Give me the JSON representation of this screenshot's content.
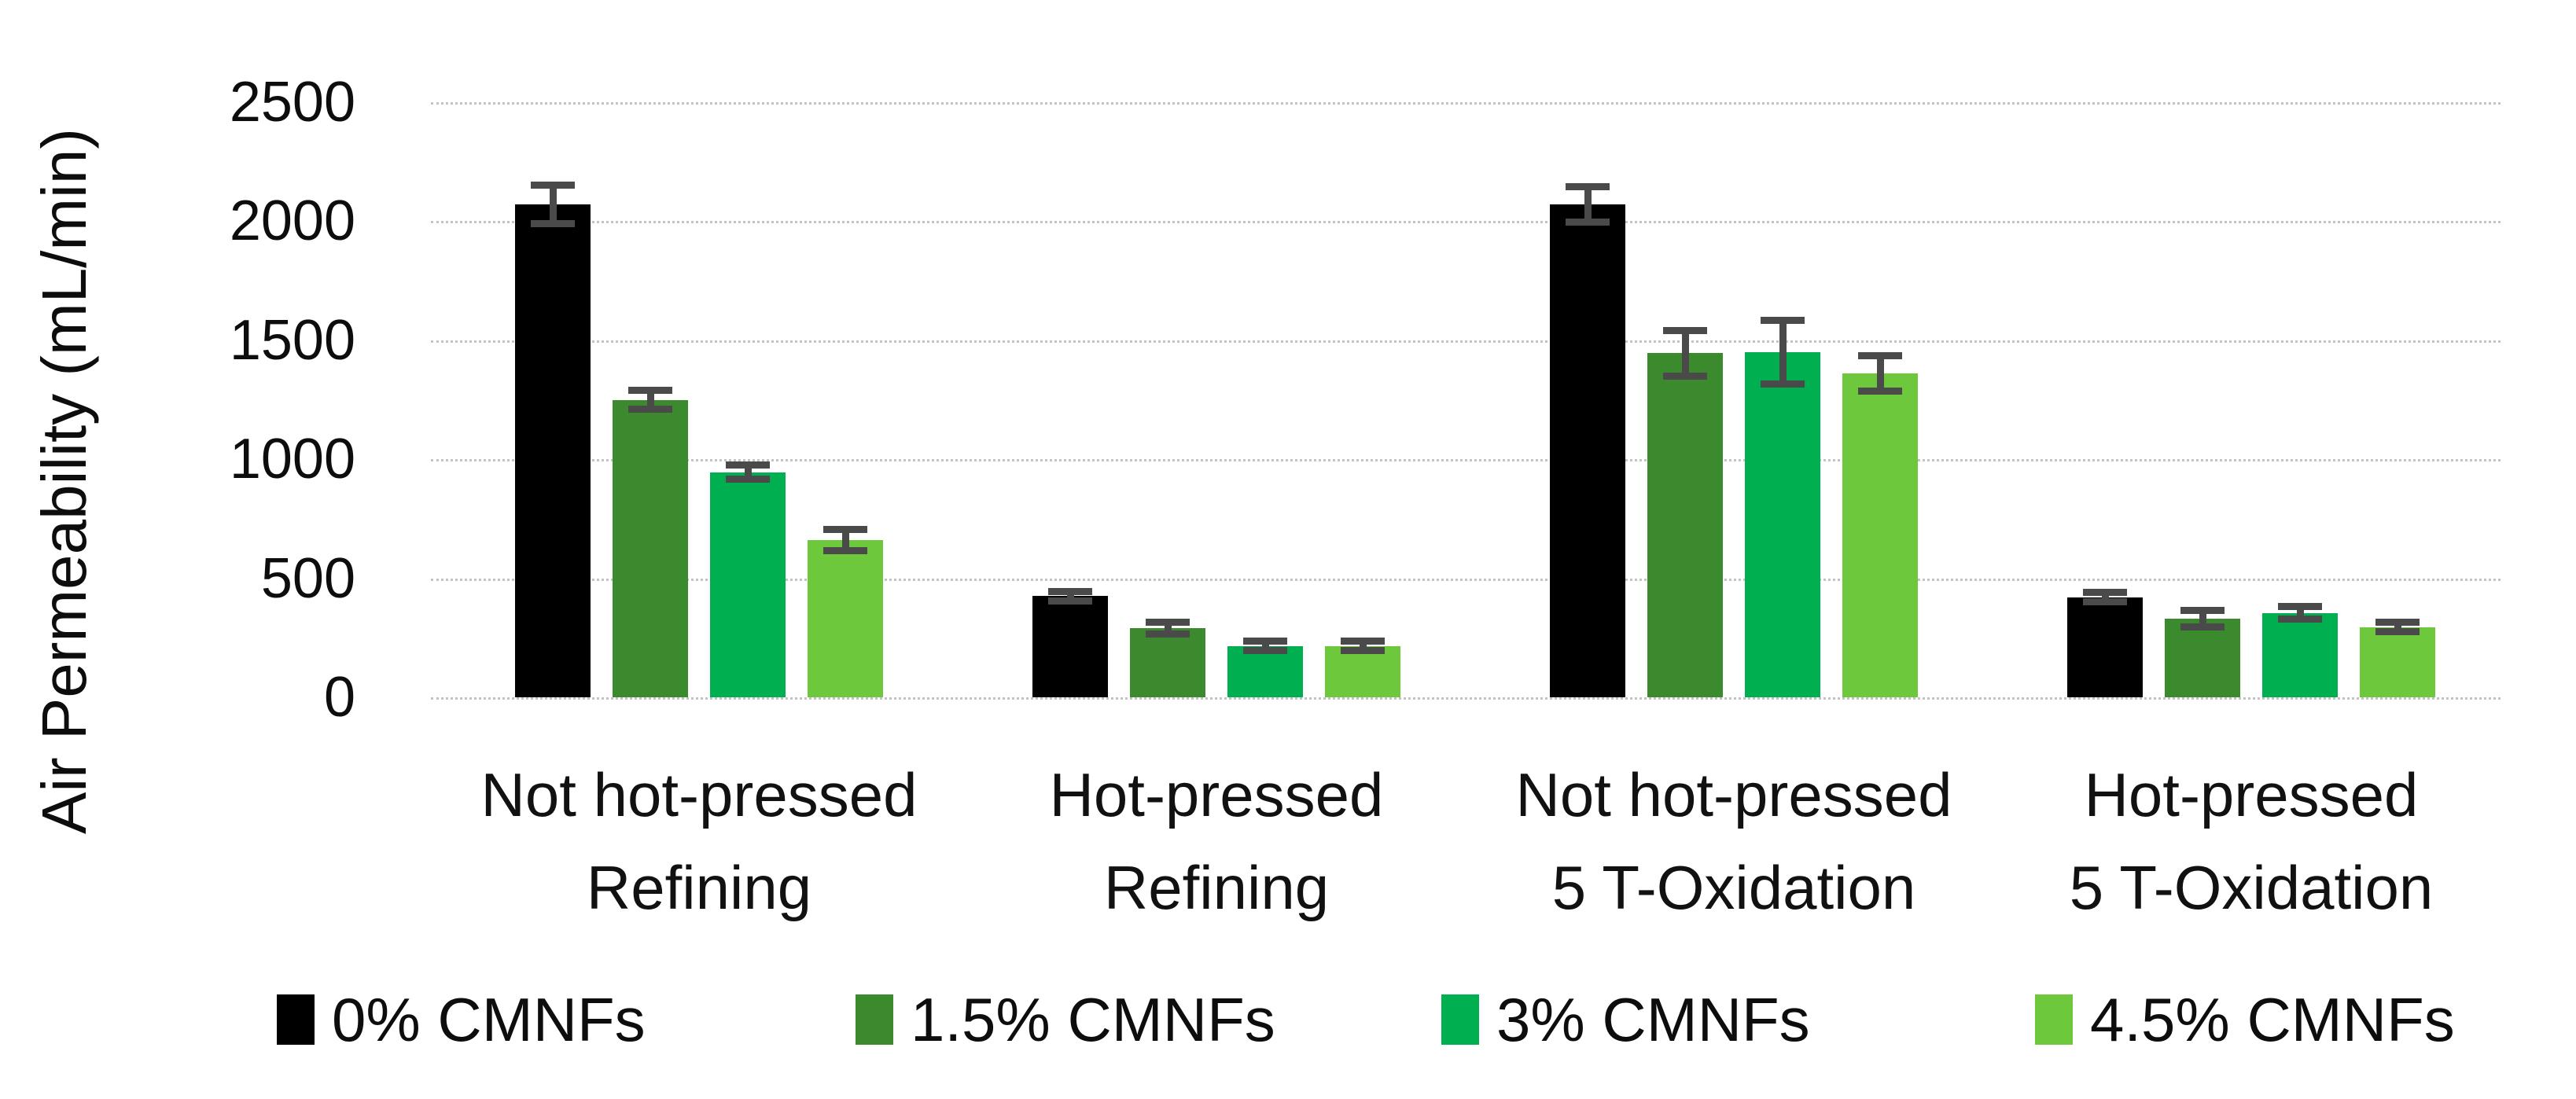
{
  "chart_data": {
    "type": "bar",
    "title": "",
    "xlabel": "",
    "ylabel": "Air Permeability (mL/min)",
    "ylim": [
      0,
      2500
    ],
    "yticks": [
      0,
      500,
      1000,
      1500,
      2000,
      2500
    ],
    "grid": "horizontal-dotted",
    "legend_position": "bottom",
    "categories": [
      [
        "Not hot-pressed",
        "Refining"
      ],
      [
        "Hot-pressed",
        "Refining"
      ],
      [
        "Not hot-pressed",
        "5 T-Oxidation"
      ],
      [
        "Hot-pressed",
        "5 T-Oxidation"
      ]
    ],
    "series": [
      {
        "name": "0% CMNFs",
        "color": "#000000",
        "values": [
          2070,
          425,
          2070,
          420
        ],
        "errors": [
          95,
          35,
          90,
          35
        ]
      },
      {
        "name": "1.5% CMNFs",
        "color": "#3b8a2e",
        "values": [
          1250,
          290,
          1445,
          330
        ],
        "errors": [
          55,
          40,
          110,
          50
        ]
      },
      {
        "name": "3% CMNFs",
        "color": "#00b050",
        "values": [
          945,
          215,
          1450,
          355
        ],
        "errors": [
          45,
          35,
          150,
          40
        ]
      },
      {
        "name": "4.5% CMNFs",
        "color": "#6ec83c",
        "values": [
          660,
          215,
          1360,
          295
        ],
        "errors": [
          60,
          35,
          90,
          35
        ]
      }
    ],
    "error_bar_color": "#4a4a4a",
    "gridline_color": "#c3c3c3"
  }
}
